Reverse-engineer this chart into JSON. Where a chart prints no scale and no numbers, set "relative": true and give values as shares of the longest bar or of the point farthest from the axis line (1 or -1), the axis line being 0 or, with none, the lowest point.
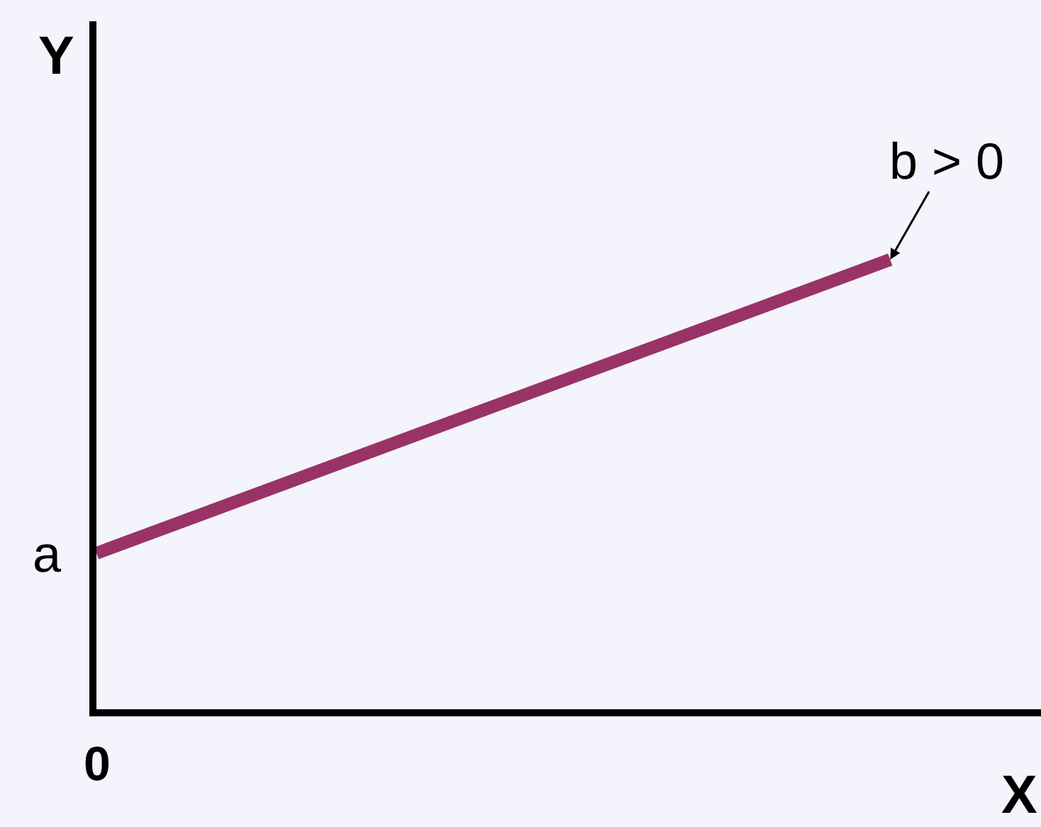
{
  "chart_data": {
    "type": "line",
    "relative": true,
    "xlabel": "X",
    "ylabel": "Y",
    "categories": [
      null,
      null
    ],
    "series": [
      {
        "color": "#993366",
        "values": [
          0.347,
          1
        ]
      }
    ],
    "annotations": [
      "0",
      "a",
      "b > 0"
    ],
    "grid": false,
    "marker": "none",
    "line_style": "solid"
  }
}
